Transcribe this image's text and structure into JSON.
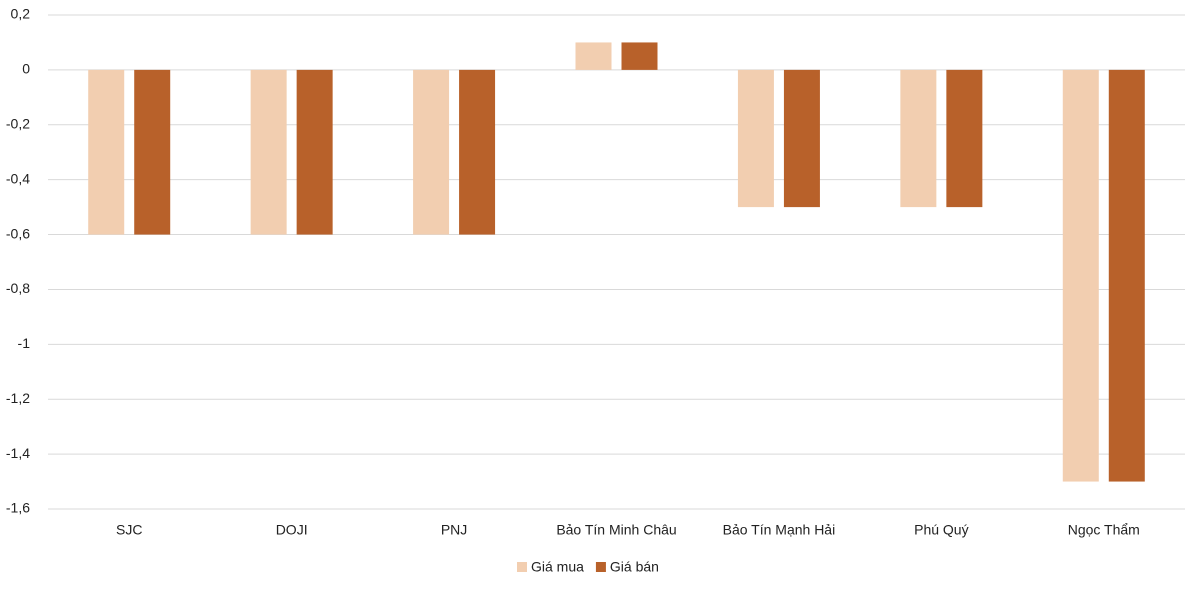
{
  "chart_data": {
    "type": "bar",
    "categories": [
      "SJC",
      "DOJI",
      "PNJ",
      "Bảo Tín Minh Châu",
      "Bảo Tín Mạnh Hải",
      "Phú Quý",
      "Ngọc Thẩm"
    ],
    "series": [
      {
        "name": "Giá mua",
        "color": "#f2ceb0",
        "values": [
          -0.6,
          -0.6,
          -0.6,
          0.1,
          -0.5,
          -0.5,
          -1.5
        ]
      },
      {
        "name": "Giá bán",
        "color": "#b8612a",
        "values": [
          -0.6,
          -0.6,
          -0.6,
          0.1,
          -0.5,
          -0.5,
          -1.5
        ]
      }
    ],
    "ylim": [
      -1.6,
      0.2
    ],
    "yticks": [
      {
        "value": 0.2,
        "label": "0,2"
      },
      0,
      {
        "value": -0.2,
        "label": "-0,2"
      },
      {
        "value": -0.4,
        "label": "-0,4"
      },
      {
        "value": -0.6,
        "label": "-0,6"
      },
      {
        "value": -0.8,
        "label": "-0,8"
      },
      -1,
      {
        "value": -1.2,
        "label": "-1,2"
      },
      {
        "value": -1.4,
        "label": "-1,4"
      },
      {
        "value": -1.6,
        "label": "-1,6"
      }
    ],
    "grid": true
  }
}
